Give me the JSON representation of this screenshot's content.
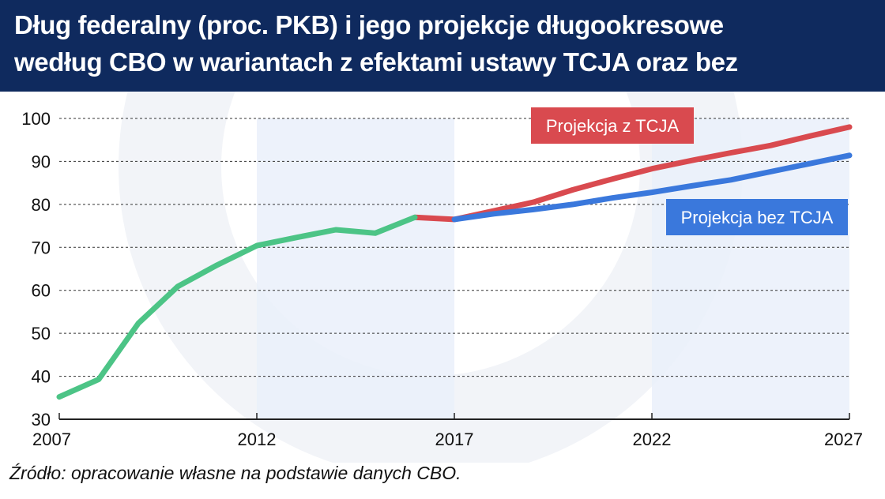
{
  "header": {
    "title_line1": "Dług federalny (proc. PKB) i jego projekcje długookresowe",
    "title_line2": "według CBO w wariantach z efektami ustawy TCJA oraz bez"
  },
  "source": "Źródło: opracowanie własne na podstawie danych CBO.",
  "colors": {
    "header_bg": "#0f2a5e",
    "historical": "#4cc486",
    "with_tcja": "#d94a4f",
    "without_tcja": "#3a78dc",
    "band": "#eaf0fa"
  },
  "chart_data": {
    "type": "line",
    "title": "Dług federalny (proc. PKB) i jego projekcje długookresowe według CBO w wariantach z efektami ustawy TCJA oraz bez",
    "xlabel": "",
    "ylabel": "",
    "xlim": [
      2007,
      2027
    ],
    "ylim": [
      30,
      100
    ],
    "x_ticks": [
      "2007",
      "2012",
      "2017",
      "2022",
      "2027"
    ],
    "y_ticks": [
      "30",
      "40",
      "50",
      "60",
      "70",
      "80",
      "90",
      "100"
    ],
    "grid": "horizontal-dashed",
    "shaded_ranges": [
      [
        2012,
        2017
      ],
      [
        2022,
        2027
      ]
    ],
    "series": [
      {
        "name": "",
        "color": "#4cc486",
        "x": [
          2007,
          2008,
          2009,
          2010,
          2011,
          2012,
          2013,
          2014,
          2015,
          2016
        ],
        "y": [
          35.2,
          39.3,
          52.3,
          60.9,
          65.9,
          70.4,
          72.3,
          74.1,
          73.3,
          77.0
        ]
      },
      {
        "name": "Projekcja z TCJA",
        "color": "#d94a4f",
        "x": [
          2016,
          2017,
          2018,
          2019,
          2020,
          2021,
          2022,
          2023,
          2024,
          2025,
          2026,
          2027
        ],
        "y": [
          77.0,
          76.5,
          78.5,
          80.5,
          83.4,
          85.9,
          88.3,
          90.2,
          92.0,
          93.7,
          95.9,
          98.0
        ]
      },
      {
        "name": "Projekcja bez TCJA",
        "color": "#3a78dc",
        "x": [
          2017,
          2018,
          2019,
          2020,
          2021,
          2022,
          2023,
          2024,
          2025,
          2026,
          2027
        ],
        "y": [
          76.5,
          77.8,
          78.8,
          80.0,
          81.5,
          82.8,
          84.3,
          85.7,
          87.6,
          89.5,
          91.4
        ]
      }
    ],
    "annotations": [
      {
        "text": "Projekcja z TCJA",
        "color": "#d94a4f"
      },
      {
        "text": "Projekcja bez TCJA",
        "color": "#3a78dc"
      }
    ]
  }
}
